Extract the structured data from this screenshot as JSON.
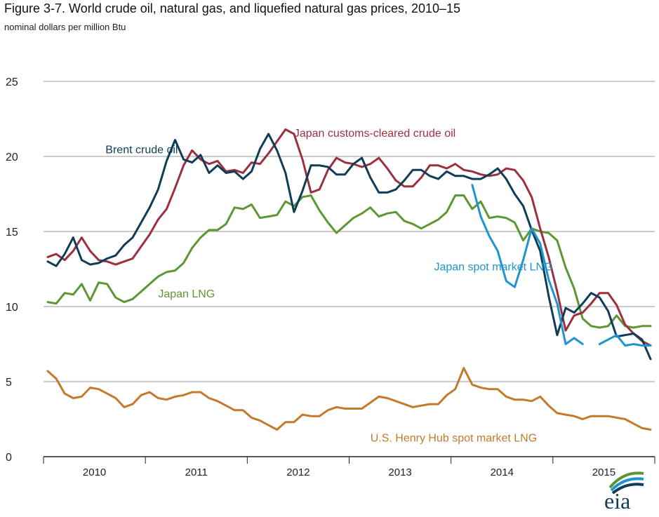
{
  "title": "Figure 3-7. World crude oil, natural gas, and liquefied natural gas prices, 2010–15",
  "subtitle": "nominal dollars per million Btu",
  "logo_text": "eia",
  "chart_data": {
    "type": "line",
    "ylim": [
      0,
      25
    ],
    "yticks": [
      0,
      5,
      10,
      15,
      20,
      25
    ],
    "xlim": [
      0,
      72
    ],
    "xticks": [
      {
        "label": "2010",
        "x": 6
      },
      {
        "label": "2011",
        "x": 18
      },
      {
        "label": "2012",
        "x": 30
      },
      {
        "label": "2013",
        "x": 42
      },
      {
        "label": "2014",
        "x": 54
      },
      {
        "label": "2015",
        "x": 66
      }
    ],
    "grid": true,
    "series": [
      {
        "name": "Japan LNG",
        "color": "#5e9732",
        "label_at": [
          13.5,
          10.6
        ],
        "values": [
          10.3,
          10.2,
          10.9,
          10.8,
          11.5,
          10.4,
          11.6,
          11.5,
          10.6,
          10.3,
          10.5,
          11.0,
          11.5,
          12.0,
          12.3,
          12.4,
          12.9,
          13.9,
          14.6,
          15.1,
          15.1,
          15.5,
          16.6,
          16.5,
          16.8,
          15.9,
          16.0,
          16.1,
          17.0,
          16.7,
          17.3,
          17.4,
          16.4,
          15.6,
          14.9,
          15.4,
          15.9,
          16.2,
          16.6,
          16.0,
          16.2,
          16.3,
          15.7,
          15.5,
          15.2,
          15.5,
          15.8,
          16.3,
          17.4,
          17.4,
          16.5,
          17.0,
          15.9,
          16.0,
          15.9,
          15.6,
          14.4,
          15.2,
          15.0,
          14.9,
          14.4,
          12.6,
          11.2,
          9.2,
          8.7,
          8.6,
          8.7,
          9.4,
          8.7,
          8.6,
          8.7,
          8.7
        ]
      },
      {
        "name": "Japan customs-cleared crude oil",
        "color": "#9d3040",
        "label_at": [
          29.5,
          21.3
        ],
        "values": [
          13.3,
          13.5,
          13.1,
          13.7,
          14.6,
          13.7,
          13.1,
          13.0,
          12.8,
          13.0,
          13.2,
          14.0,
          14.8,
          15.8,
          16.5,
          17.9,
          19.4,
          20.4,
          19.8,
          19.5,
          19.7,
          19.0,
          19.1,
          18.9,
          19.6,
          19.5,
          20.2,
          21.0,
          21.8,
          21.5,
          19.8,
          17.6,
          17.8,
          19.1,
          19.9,
          19.6,
          19.5,
          19.3,
          19.5,
          19.9,
          19.2,
          18.4,
          18.0,
          18.0,
          18.6,
          19.4,
          19.4,
          19.2,
          19.5,
          19.1,
          19.0,
          18.8,
          18.7,
          18.8,
          19.2,
          19.1,
          18.4,
          17.3,
          15.2,
          13.3,
          11.0,
          8.4,
          9.4,
          9.6,
          10.2,
          10.9,
          10.9,
          10.1,
          8.8,
          8.2,
          7.7,
          7.4
        ]
      },
      {
        "name": "Brent crude oil",
        "color": "#0f3d57",
        "label_at": [
          7.3,
          20.2
        ],
        "values": [
          13.0,
          12.7,
          13.5,
          14.6,
          13.1,
          12.8,
          12.9,
          13.2,
          13.4,
          14.1,
          14.6,
          15.6,
          16.6,
          17.8,
          19.7,
          21.1,
          19.8,
          19.6,
          20.1,
          18.9,
          19.4,
          18.9,
          19.0,
          18.5,
          19.0,
          20.5,
          21.5,
          20.4,
          18.9,
          16.3,
          17.7,
          19.4,
          19.4,
          19.3,
          18.8,
          18.8,
          19.5,
          19.9,
          18.6,
          17.6,
          17.6,
          17.8,
          18.4,
          19.1,
          19.1,
          18.7,
          18.5,
          19.0,
          18.7,
          18.7,
          18.5,
          18.5,
          18.8,
          19.2,
          18.5,
          17.5,
          16.7,
          15.1,
          13.7,
          10.7,
          8.1,
          9.9,
          9.6,
          10.2,
          10.9,
          10.6,
          9.7,
          8.0,
          8.1,
          8.2,
          7.8,
          6.5
        ]
      },
      {
        "name": "Japan spot market LNG",
        "color": "#1f94cf",
        "label_at": [
          46,
          12.4
        ],
        "values": [
          null,
          null,
          null,
          null,
          null,
          null,
          null,
          null,
          null,
          null,
          null,
          null,
          null,
          null,
          null,
          null,
          null,
          null,
          null,
          null,
          null,
          null,
          null,
          null,
          null,
          null,
          null,
          null,
          null,
          null,
          null,
          null,
          null,
          null,
          null,
          null,
          null,
          null,
          null,
          null,
          null,
          null,
          null,
          null,
          null,
          null,
          null,
          null,
          null,
          null,
          18.1,
          16.0,
          14.7,
          13.7,
          11.7,
          11.3,
          13.1,
          15.2,
          14.2,
          11.8,
          10.2,
          7.5,
          7.9,
          7.5,
          null,
          7.5,
          7.8,
          8.1,
          7.4,
          7.5,
          7.4,
          7.4
        ]
      },
      {
        "name": "U.S. Henry Hub spot market LNG",
        "color": "#c37a2d",
        "label_at": [
          38.5,
          1.0
        ],
        "values": [
          5.7,
          5.2,
          4.2,
          3.9,
          4.0,
          4.6,
          4.5,
          4.2,
          3.9,
          3.3,
          3.5,
          4.1,
          4.3,
          3.9,
          3.8,
          4.0,
          4.1,
          4.3,
          4.3,
          3.9,
          3.7,
          3.4,
          3.1,
          3.1,
          2.6,
          2.4,
          2.1,
          1.8,
          2.3,
          2.3,
          2.8,
          2.7,
          2.7,
          3.1,
          3.3,
          3.2,
          3.2,
          3.2,
          3.6,
          4.0,
          3.9,
          3.7,
          3.5,
          3.3,
          3.4,
          3.5,
          3.5,
          4.1,
          4.5,
          5.9,
          4.8,
          4.6,
          4.5,
          4.5,
          4.0,
          3.8,
          3.8,
          3.7,
          4.0,
          3.4,
          2.9,
          2.8,
          2.7,
          2.5,
          2.7,
          2.7,
          2.7,
          2.6,
          2.5,
          2.2,
          1.9,
          1.8
        ]
      }
    ]
  }
}
